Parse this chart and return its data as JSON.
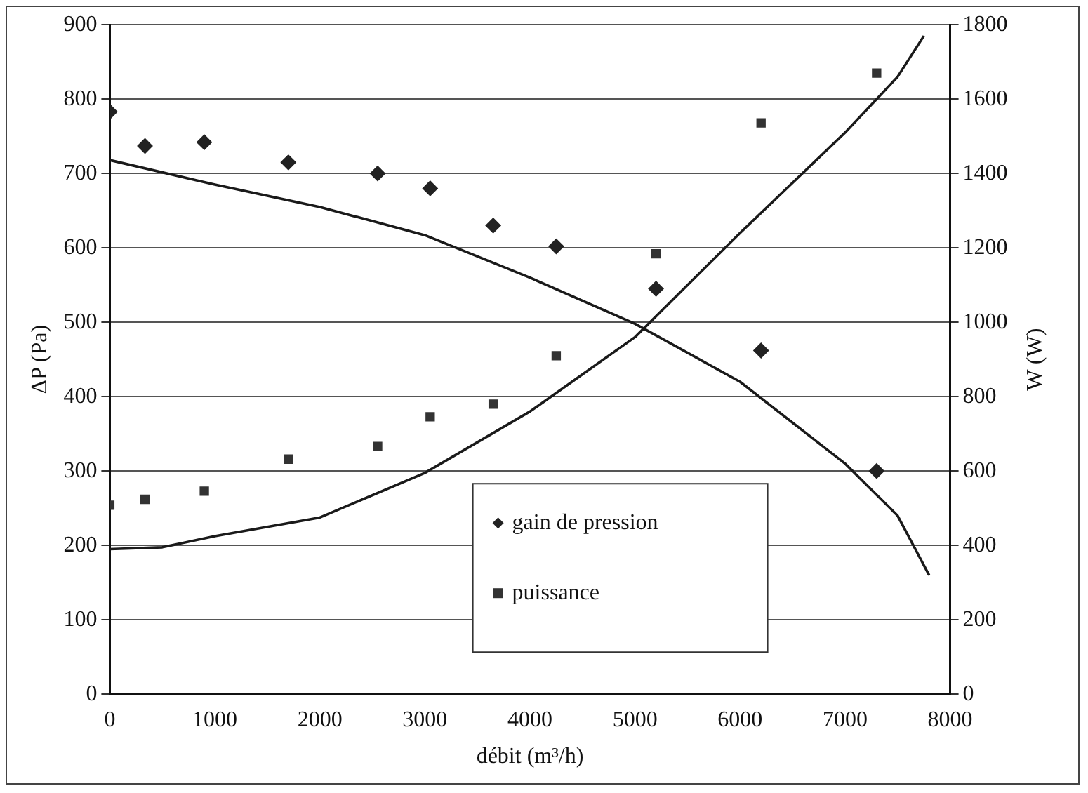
{
  "chart_data": {
    "type": "scatter",
    "xlabel": "débit (m³/h)",
    "ylabel": "ΔP (Pa)",
    "y2label": "W (W)",
    "xlim": [
      0,
      8000
    ],
    "xticks": [
      0,
      1000,
      2000,
      3000,
      4000,
      5000,
      6000,
      7000,
      8000
    ],
    "ylim": [
      0,
      900
    ],
    "yticks": [
      0,
      100,
      200,
      300,
      400,
      500,
      600,
      700,
      800,
      900
    ],
    "y2lim": [
      0,
      1800
    ],
    "y2ticks": [
      0,
      200,
      400,
      600,
      800,
      1000,
      1200,
      1400,
      1600,
      1800
    ],
    "grid": "y",
    "legend": "bottom right",
    "series": [
      {
        "name": "gain de pression",
        "marker": "diamond",
        "color": "#222222",
        "x": [
          0,
          335,
          900,
          1700,
          2550,
          3050,
          3650,
          4250,
          5200,
          6200,
          7300
        ],
        "values": [
          783,
          737,
          742,
          715,
          700,
          680,
          630,
          602,
          545,
          462,
          300
        ]
      },
      {
        "name": "puissance",
        "marker": "square",
        "color": "#333333",
        "axis": "y2",
        "x": [
          0,
          335,
          900,
          1700,
          2550,
          3050,
          3650,
          4250,
          5200,
          6200,
          7300
        ],
        "values": [
          508,
          524,
          546,
          632,
          666,
          746,
          780,
          910,
          1184,
          1536,
          1670
        ]
      },
      {
        "type": "line",
        "marker": "none",
        "color": "#1a1a1a",
        "x": [
          0,
          1000,
          2000,
          3000,
          4000,
          5000,
          6000,
          7000,
          7500,
          7800
        ],
        "values": [
          718,
          685,
          655,
          617,
          560,
          498,
          420,
          310,
          240,
          160
        ]
      },
      {
        "type": "line",
        "marker": "none",
        "color": "#1a1a1a",
        "axis": "y2",
        "x": [
          0,
          500,
          1000,
          2000,
          3000,
          4000,
          5000,
          6000,
          7000,
          7500,
          7750
        ],
        "values": [
          390,
          395,
          425,
          475,
          595,
          760,
          960,
          1240,
          1510,
          1660,
          1770
        ]
      }
    ]
  }
}
